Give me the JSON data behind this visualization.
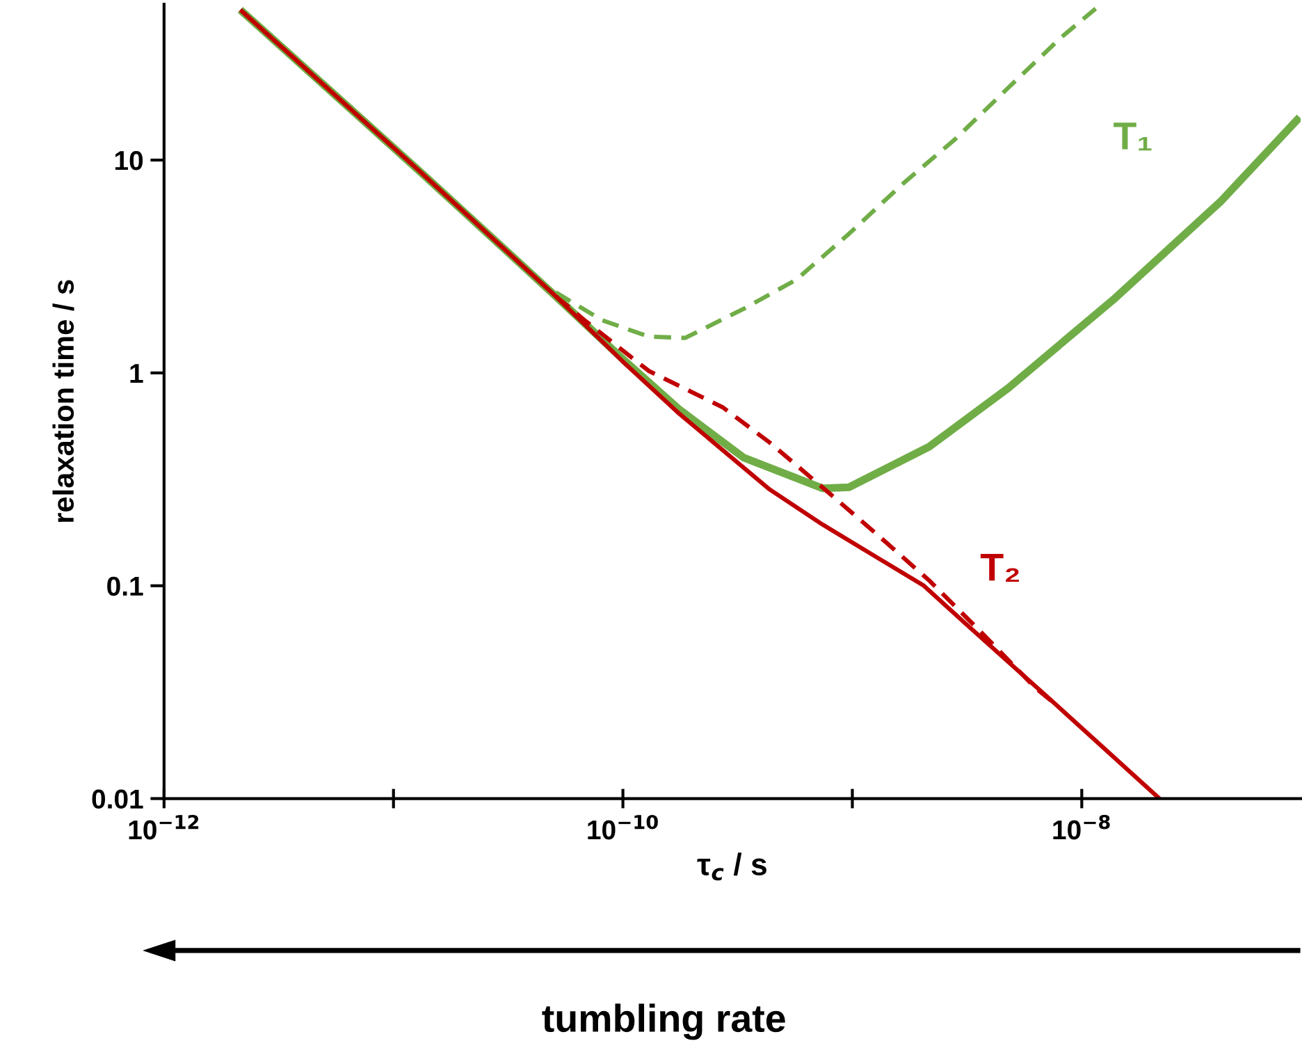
{
  "chart_data": {
    "type": "line",
    "xlabel": "τ$_{c}$ / s",
    "ylabel": "relaxation time / s",
    "log": "xy",
    "grid": false,
    "legend": false,
    "marker": "none",
    "xlim": [
      1e-12,
      9e-08
    ],
    "ylim": [
      0.01,
      54
    ],
    "xticks": [
      {
        "value": 1e-12,
        "label": "10$^{−12}$"
      },
      {
        "value": 1e-11,
        "label": null
      },
      {
        "value": 1e-10,
        "label": "10$^{−10}$"
      },
      {
        "value": 1e-09,
        "label": null
      },
      {
        "value": 1e-08,
        "label": "10$^{−8}$"
      }
    ],
    "yticks": [
      0.01,
      0.1,
      1,
      10
    ],
    "series": [
      {
        "name": "T₁",
        "color": "#70ad47",
        "line_style": "solid",
        "x": [
          2.15e-12,
          1.28e-11,
          5.1e-11,
          1e-10,
          1.77e-10,
          3.36e-10,
          7.41e-10,
          9.66e-10,
          2.16e-09,
          4.79e-09,
          1.4e-08,
          4.02e-08,
          8.9e-08
        ],
        "values": [
          50.8,
          9.0,
          2.29,
          1.16,
          0.67,
          0.4,
          0.287,
          0.29,
          0.45,
          0.85,
          2.25,
          6.37,
          15.9
        ]
      },
      {
        "color": "#70ad47",
        "line_style": "dashed",
        "x": [
          5.1e-11,
          8.1e-11,
          1.3e-10,
          1.87e-10,
          3.36e-10,
          5.69e-10,
          9.66e-10,
          1.66e-09,
          2.82e-09,
          4.79e-09,
          8.11e-09,
          1.15e-08
        ],
        "values": [
          2.39,
          1.77,
          1.48,
          1.46,
          2.0,
          2.74,
          4.5,
          7.74,
          12.6,
          21.9,
          37.6,
          51.5
        ]
      },
      {
        "name": "T₂",
        "color": "#c00000",
        "line_style": "solid",
        "x": [
          2.15e-12,
          1.28e-11,
          5.1e-11,
          1e-10,
          1.77e-10,
          4.37e-10,
          7.41e-10,
          2.05e-09,
          3.1e-09,
          7.67e-09,
          2.18e-08
        ],
        "values": [
          50.8,
          9.0,
          2.29,
          1.13,
          0.64,
          0.283,
          0.194,
          0.1,
          0.0667,
          0.0278,
          0.01
        ]
      },
      {
        "color": "#c00000",
        "line_style": "dashed",
        "x": [
          5.1e-11,
          6.8e-11,
          1.15e-10,
          1.3e-10,
          2.72e-10,
          4.37e-10,
          7.41e-10,
          1.26e-09,
          2.16e-09,
          3.67e-09,
          6.24e-09,
          7.67e-09
        ],
        "values": [
          2.29,
          1.77,
          1.13,
          1.02,
          0.69,
          0.47,
          0.29,
          0.177,
          0.106,
          0.06,
          0.0333,
          0.0278
        ]
      }
    ],
    "annotations": [
      "tumbling rate"
    ]
  }
}
